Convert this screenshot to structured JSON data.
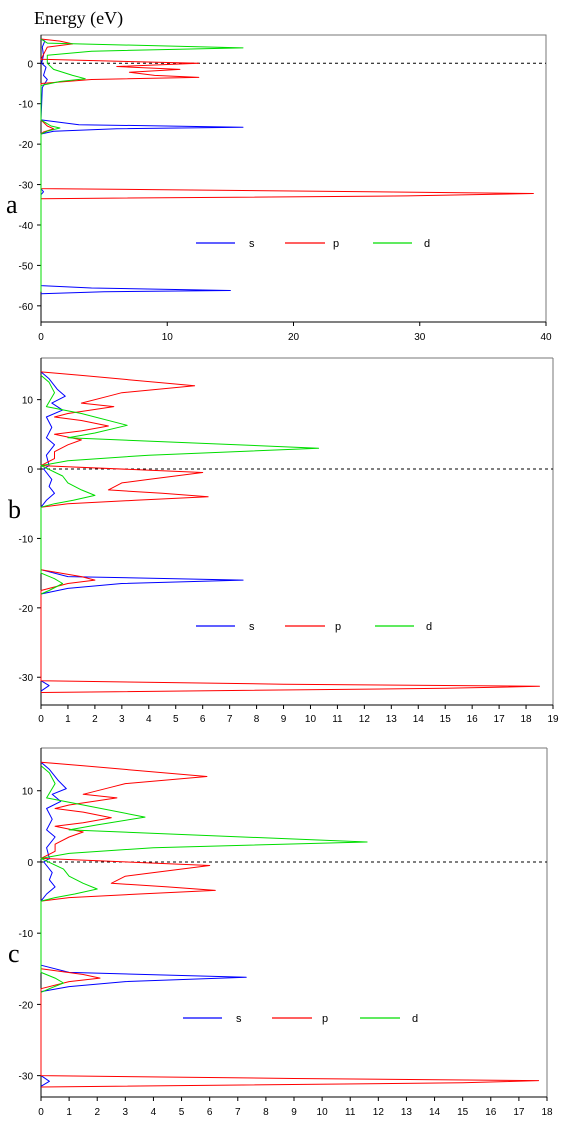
{
  "title": "Energy (eV)",
  "legend": {
    "s": "s",
    "p": "p",
    "d": "d"
  },
  "colors": {
    "s": "#0000ff",
    "p": "#ff0000",
    "d": "#00dd00"
  },
  "chart_data": [
    {
      "type": "line",
      "panel_label": "a",
      "ylabel": "Energy (eV)",
      "xlim": [
        0,
        40
      ],
      "ylim": [
        -64,
        7
      ],
      "xticks": [
        0,
        10,
        20,
        30,
        40
      ],
      "yticks": [
        0,
        -10,
        -20,
        -30,
        -40,
        -50,
        -60
      ],
      "fermi_level": 0,
      "series": [
        {
          "name": "s",
          "points": [
            [
              0,
              6
            ],
            [
              0.3,
              5.5
            ],
            [
              0.1,
              4
            ],
            [
              0.2,
              2
            ],
            [
              0.05,
              0
            ],
            [
              0.4,
              -1
            ],
            [
              0.2,
              -3
            ],
            [
              0.5,
              -4
            ],
            [
              0.1,
              -6
            ],
            [
              0,
              -14
            ],
            [
              3,
              -15.2
            ],
            [
              16,
              -15.8
            ],
            [
              6,
              -16.2
            ],
            [
              1,
              -16.8
            ],
            [
              0,
              -17.5
            ],
            [
              0,
              -31
            ],
            [
              0.2,
              -31.8
            ],
            [
              0,
              -32.5
            ],
            [
              0,
              -55
            ],
            [
              4,
              -55.6
            ],
            [
              15,
              -56.2
            ],
            [
              5,
              -56.5
            ],
            [
              0,
              -57
            ]
          ]
        },
        {
          "name": "p",
          "points": [
            [
              0,
              6
            ],
            [
              1.5,
              5.5
            ],
            [
              2.5,
              4.8
            ],
            [
              0.5,
              4
            ],
            [
              0,
              1
            ],
            [
              12.5,
              0
            ],
            [
              6,
              -0.8
            ],
            [
              11,
              -1.5
            ],
            [
              7,
              -2.2
            ],
            [
              9,
              -3
            ],
            [
              12.5,
              -3.5
            ],
            [
              4,
              -4
            ],
            [
              0,
              -5
            ],
            [
              0,
              -14
            ],
            [
              0.5,
              -15.5
            ],
            [
              1,
              -16.2
            ],
            [
              0.2,
              -17
            ],
            [
              0,
              -17.5
            ],
            [
              0,
              -31
            ],
            [
              20,
              -31.6
            ],
            [
              39,
              -32.2
            ],
            [
              29,
              -32.8
            ],
            [
              0,
              -33.5
            ]
          ]
        },
        {
          "name": "d",
          "points": [
            [
              0,
              6
            ],
            [
              0.5,
              5
            ],
            [
              16,
              3.8
            ],
            [
              4,
              3
            ],
            [
              0.5,
              2
            ],
            [
              0.5,
              0
            ],
            [
              1,
              -1.5
            ],
            [
              2.5,
              -3
            ],
            [
              3.5,
              -3.8
            ],
            [
              1.5,
              -4.5
            ],
            [
              0,
              -5.5
            ],
            [
              0,
              -14
            ],
            [
              0.8,
              -15.5
            ],
            [
              1.5,
              -16
            ],
            [
              0.5,
              -16.8
            ],
            [
              0,
              -17.5
            ],
            [
              0,
              -56.5
            ]
          ]
        }
      ]
    },
    {
      "type": "line",
      "panel_label": "b",
      "ylabel": "",
      "xlim": [
        0,
        19
      ],
      "ylim": [
        -34,
        16
      ],
      "xticks": [
        0,
        1,
        2,
        3,
        4,
        5,
        6,
        7,
        8,
        9,
        10,
        11,
        12,
        13,
        14,
        15,
        16,
        17,
        18,
        19
      ],
      "yticks": [
        10,
        0,
        -10,
        -20,
        -30
      ],
      "fermi_level": 0,
      "series": [
        {
          "name": "s",
          "points": [
            [
              0,
              14
            ],
            [
              0.3,
              13
            ],
            [
              0.6,
              11.5
            ],
            [
              0.9,
              10.5
            ],
            [
              0.4,
              9.5
            ],
            [
              0.8,
              8.5
            ],
            [
              0.2,
              7.5
            ],
            [
              0.4,
              6
            ],
            [
              0.2,
              4.5
            ],
            [
              0.5,
              3.5
            ],
            [
              0.2,
              2
            ],
            [
              0.3,
              0.5
            ],
            [
              0.1,
              0
            ],
            [
              0.4,
              -1.5
            ],
            [
              0.3,
              -2.5
            ],
            [
              0.5,
              -3.5
            ],
            [
              0.2,
              -4.5
            ],
            [
              0,
              -5.5
            ],
            [
              0,
              -14.5
            ],
            [
              1,
              -15.5
            ],
            [
              7.5,
              -16
            ],
            [
              3,
              -16.5
            ],
            [
              1,
              -17.2
            ],
            [
              0,
              -18
            ],
            [
              0,
              -30.5
            ],
            [
              0.3,
              -31.2
            ],
            [
              0,
              -32
            ]
          ]
        },
        {
          "name": "p",
          "points": [
            [
              0,
              14
            ],
            [
              1.5,
              13.5
            ],
            [
              5.7,
              12
            ],
            [
              3,
              11
            ],
            [
              2.5,
              10.5
            ],
            [
              1.5,
              9.5
            ],
            [
              2.7,
              9
            ],
            [
              1,
              8
            ],
            [
              0.5,
              7.5
            ],
            [
              1.5,
              7
            ],
            [
              2.5,
              6.2
            ],
            [
              1.5,
              5.5
            ],
            [
              0.5,
              5
            ],
            [
              1.5,
              4.2
            ],
            [
              1,
              3.5
            ],
            [
              0.5,
              2.5
            ],
            [
              0.5,
              1.5
            ],
            [
              0,
              0.5
            ],
            [
              6,
              -0.5
            ],
            [
              4,
              -1.5
            ],
            [
              3,
              -2
            ],
            [
              2.5,
              -3
            ],
            [
              4.5,
              -3.5
            ],
            [
              6.2,
              -4
            ],
            [
              3.5,
              -4.5
            ],
            [
              1,
              -5
            ],
            [
              0,
              -5.5
            ],
            [
              0,
              -14.5
            ],
            [
              1.5,
              -15.5
            ],
            [
              2,
              -16
            ],
            [
              1,
              -16.5
            ],
            [
              0,
              -17.5
            ],
            [
              0,
              -30.5
            ],
            [
              9,
              -31
            ],
            [
              18.5,
              -31.3
            ],
            [
              15,
              -31.6
            ],
            [
              0,
              -32.2
            ]
          ]
        },
        {
          "name": "d",
          "points": [
            [
              0,
              13.5
            ],
            [
              0.3,
              12.5
            ],
            [
              0.5,
              11
            ],
            [
              0.2,
              9
            ],
            [
              1.5,
              8
            ],
            [
              3.2,
              6.3
            ],
            [
              2,
              5.2
            ],
            [
              1,
              4.5
            ],
            [
              10.3,
              3
            ],
            [
              4,
              2
            ],
            [
              1,
              1.2
            ],
            [
              0,
              0.5
            ],
            [
              0.8,
              -1
            ],
            [
              1,
              -2
            ],
            [
              1.5,
              -3
            ],
            [
              2,
              -3.8
            ],
            [
              1.2,
              -4.5
            ],
            [
              0.5,
              -5
            ],
            [
              0,
              -5.5
            ],
            [
              0,
              -15
            ],
            [
              0.5,
              -15.8
            ],
            [
              0.8,
              -16.5
            ],
            [
              0.3,
              -17.5
            ],
            [
              0,
              -18
            ]
          ]
        }
      ]
    },
    {
      "type": "line",
      "panel_label": "c",
      "ylabel": "",
      "xlim": [
        0,
        18
      ],
      "ylim": [
        -33,
        16
      ],
      "xticks": [
        0,
        1,
        2,
        3,
        4,
        5,
        6,
        7,
        8,
        9,
        10,
        11,
        12,
        13,
        14,
        15,
        16,
        17,
        18
      ],
      "yticks": [
        10,
        0,
        -10,
        -20,
        -30
      ],
      "fermi_level": 0,
      "series": [
        {
          "name": "s",
          "points": [
            [
              0,
              14
            ],
            [
              0.3,
              13
            ],
            [
              0.6,
              11.5
            ],
            [
              0.9,
              10.3
            ],
            [
              0.4,
              9.5
            ],
            [
              0.7,
              8.5
            ],
            [
              0.2,
              7.5
            ],
            [
              0.4,
              6
            ],
            [
              0.2,
              4.5
            ],
            [
              0.5,
              3.5
            ],
            [
              0.2,
              2
            ],
            [
              0.3,
              0.5
            ],
            [
              0.1,
              0
            ],
            [
              0.4,
              -1.5
            ],
            [
              0.3,
              -2.5
            ],
            [
              0.5,
              -3.5
            ],
            [
              0.2,
              -4.5
            ],
            [
              0,
              -5.5
            ],
            [
              0,
              -14.5
            ],
            [
              1,
              -15.5
            ],
            [
              7.3,
              -16.2
            ],
            [
              3,
              -16.8
            ],
            [
              1,
              -17.5
            ],
            [
              0,
              -18.2
            ],
            [
              0,
              -30
            ],
            [
              0.3,
              -30.8
            ],
            [
              0,
              -31.5
            ]
          ]
        },
        {
          "name": "p",
          "points": [
            [
              0,
              14
            ],
            [
              1.5,
              13.5
            ],
            [
              5.9,
              12
            ],
            [
              3,
              11
            ],
            [
              2.5,
              10.5
            ],
            [
              1.5,
              9.5
            ],
            [
              2.7,
              9
            ],
            [
              1,
              8
            ],
            [
              0.5,
              7.5
            ],
            [
              1.5,
              7
            ],
            [
              2.5,
              6.2
            ],
            [
              1.5,
              5.5
            ],
            [
              0.5,
              5
            ],
            [
              1.5,
              4.2
            ],
            [
              1,
              3.5
            ],
            [
              0.5,
              2.5
            ],
            [
              0.5,
              1.5
            ],
            [
              0,
              0.5
            ],
            [
              6,
              -0.5
            ],
            [
              4,
              -1.5
            ],
            [
              3,
              -2
            ],
            [
              2.5,
              -3
            ],
            [
              4.5,
              -3.5
            ],
            [
              6.2,
              -4
            ],
            [
              3.5,
              -4.5
            ],
            [
              1,
              -5
            ],
            [
              0,
              -5.5
            ],
            [
              0,
              -15
            ],
            [
              1.5,
              -15.8
            ],
            [
              2.1,
              -16.3
            ],
            [
              1,
              -16.8
            ],
            [
              0,
              -17.8
            ],
            [
              0,
              -30
            ],
            [
              9,
              -30.4
            ],
            [
              17.7,
              -30.7
            ],
            [
              15,
              -31
            ],
            [
              0,
              -31.6
            ]
          ]
        },
        {
          "name": "d",
          "points": [
            [
              0,
              13.5
            ],
            [
              0.3,
              12.5
            ],
            [
              0.5,
              11
            ],
            [
              0.2,
              9
            ],
            [
              1.5,
              8
            ],
            [
              3.7,
              6.3
            ],
            [
              2,
              5.2
            ],
            [
              1,
              4.5
            ],
            [
              11.6,
              2.8
            ],
            [
              4,
              2
            ],
            [
              1,
              1.2
            ],
            [
              0,
              0.5
            ],
            [
              0.8,
              -1
            ],
            [
              1,
              -2
            ],
            [
              1.5,
              -3
            ],
            [
              2,
              -3.8
            ],
            [
              1.2,
              -4.5
            ],
            [
              0.5,
              -5
            ],
            [
              0,
              -5.5
            ],
            [
              0,
              -15.5
            ],
            [
              0.5,
              -16.3
            ],
            [
              0.8,
              -17
            ],
            [
              0.3,
              -17.8
            ],
            [
              0,
              -18.3
            ]
          ]
        }
      ]
    }
  ]
}
